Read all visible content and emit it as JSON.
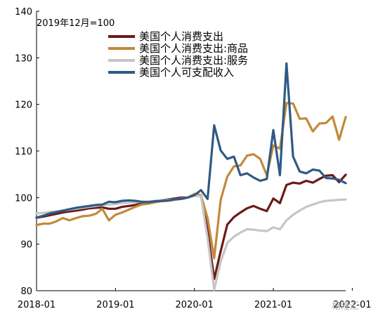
{
  "chart_data": {
    "type": "line",
    "title": "",
    "note": "2019年12月=100",
    "xlabel": "",
    "ylabel": "",
    "ylim": [
      80,
      140
    ],
    "yticks": [
      80,
      90,
      100,
      110,
      120,
      130,
      140
    ],
    "xtick_labels": [
      "2018-01",
      "2019-01",
      "2020-01",
      "2021-01",
      "2022-01"
    ],
    "x_start": "2018-01",
    "x_end": "2021-12",
    "grid": false,
    "legend_position": "top",
    "series": [
      {
        "name": "美国个人消费支出",
        "color": "#6b1a1a",
        "values": [
          95.7,
          95.9,
          96.2,
          96.5,
          96.8,
          97.0,
          97.2,
          97.4,
          97.7,
          97.8,
          97.9,
          97.6,
          97.6,
          98.0,
          98.2,
          98.4,
          98.8,
          98.9,
          99.2,
          99.4,
          99.6,
          99.8,
          100.0,
          100.0,
          100.6,
          100.4,
          93.0,
          82.5,
          88.5,
          94.2,
          95.8,
          96.8,
          97.7,
          98.2,
          97.6,
          97.1,
          99.8,
          98.8,
          102.7,
          103.2,
          103.0,
          103.6,
          103.2,
          104.0,
          104.7,
          104.8,
          103.3,
          104.9
        ]
      },
      {
        "name": "美国个人消费支出:商品",
        "color": "#c28a3a",
        "values": [
          94.1,
          94.4,
          94.4,
          94.9,
          95.6,
          95.1,
          95.6,
          96.0,
          96.1,
          96.5,
          97.6,
          95.1,
          96.3,
          96.8,
          97.4,
          98.0,
          98.5,
          98.7,
          99.0,
          99.2,
          99.3,
          99.5,
          99.8,
          100.0,
          100.8,
          100.5,
          95.6,
          87.0,
          99.5,
          104.5,
          106.7,
          106.9,
          109.0,
          109.3,
          108.3,
          104.8,
          111.2,
          110.5,
          120.3,
          120.2,
          116.9,
          117.0,
          114.2,
          115.9,
          116.0,
          117.4,
          112.4,
          117.3
        ]
      },
      {
        "name": "美国个人消费支出:服务",
        "color": "#c6c6c6",
        "values": [
          96.6,
          96.7,
          96.9,
          97.0,
          97.2,
          97.4,
          97.6,
          97.8,
          98.0,
          98.2,
          98.4,
          98.5,
          98.6,
          98.8,
          98.9,
          99.0,
          99.1,
          99.2,
          99.3,
          99.4,
          99.5,
          99.6,
          99.7,
          100.0,
          100.4,
          100.3,
          91.3,
          80.2,
          86.2,
          90.3,
          91.6,
          92.5,
          93.2,
          93.1,
          92.9,
          92.8,
          93.6,
          93.2,
          95.1,
          96.3,
          97.2,
          98.0,
          98.5,
          99.0,
          99.3,
          99.4,
          99.5,
          99.6
        ]
      },
      {
        "name": "美国个人可支配收入",
        "color": "#2f5a85",
        "values": [
          95.7,
          96.1,
          96.6,
          96.9,
          97.2,
          97.5,
          97.8,
          98.0,
          98.2,
          98.4,
          98.5,
          99.1,
          99.0,
          99.3,
          99.4,
          99.3,
          99.1,
          99.0,
          99.2,
          99.3,
          99.4,
          99.6,
          99.7,
          100.0,
          100.5,
          101.6,
          99.7,
          115.5,
          110.1,
          108.3,
          108.8,
          104.8,
          105.2,
          104.3,
          103.6,
          104.0,
          114.5,
          104.8,
          128.8,
          108.8,
          105.6,
          105.2,
          106.0,
          105.8,
          104.2,
          104.1,
          103.8,
          103.1
        ]
      }
    ]
  },
  "watermark": "格隆汇"
}
